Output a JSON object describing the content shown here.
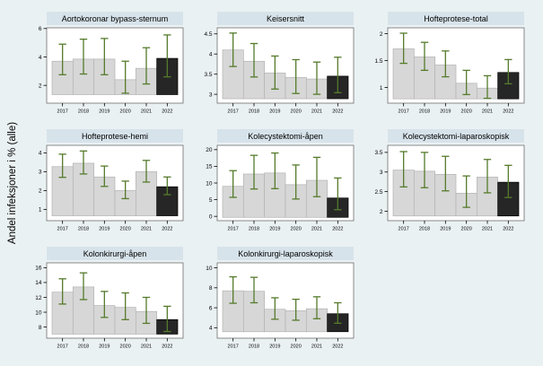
{
  "figure": {
    "ylabel": "Andel infeksjoner i % (alle)",
    "background_color": "#eaf1f3",
    "strip_color": "#d7e3ea",
    "plot_background": "#ffffff",
    "plot_border_color": "#6f6f6f",
    "bar_color": "#d7d7d7",
    "bar_border_color": "#b3b3b3",
    "highlight_bar_color": "#262626",
    "highlight_bar_border_color": "#000000",
    "ci_color": "#557b2b",
    "axis_color": "#000000"
  },
  "chart_data": {
    "type": "bar",
    "categories": [
      "2017",
      "2018",
      "2019",
      "2020",
      "2021",
      "2022"
    ],
    "ylabel": "Andel infeksjoner i % (alle)",
    "highlight_category": "2022",
    "error_bars": true,
    "legend": "none",
    "panels": [
      {
        "title": "Aortokoronar bypass-sternum",
        "yticks": [
          2,
          4,
          6
        ],
        "ylim": [
          0.75,
          6.05
        ],
        "bar_base": 1.35,
        "values": [
          3.7,
          3.85,
          3.85,
          2.4,
          3.2,
          3.9
        ],
        "ci_low": [
          2.75,
          2.8,
          2.75,
          1.45,
          2.1,
          2.6
        ],
        "ci_high": [
          4.9,
          5.25,
          5.3,
          3.7,
          4.65,
          5.55
        ]
      },
      {
        "title": "Keisersnitt",
        "yticks": [
          3,
          3.5,
          4,
          4.5
        ],
        "ylim": [
          2.78,
          4.65
        ],
        "bar_base": 2.89,
        "values": [
          4.1,
          3.82,
          3.53,
          3.42,
          3.38,
          3.45
        ],
        "ci_low": [
          3.69,
          3.43,
          3.13,
          3.02,
          3.0,
          3.04
        ],
        "ci_high": [
          4.52,
          4.26,
          3.95,
          3.86,
          3.8,
          3.92
        ]
      },
      {
        "title": "Hofteprotese-total",
        "yticks": [
          1,
          1.5,
          2
        ],
        "ylim": [
          0.71,
          2.11
        ],
        "bar_base": 0.79,
        "values": [
          1.72,
          1.57,
          1.42,
          1.08,
          0.99,
          1.28
        ],
        "ci_low": [
          1.45,
          1.32,
          1.2,
          0.87,
          0.8,
          1.07
        ],
        "ci_high": [
          2.01,
          1.84,
          1.68,
          1.32,
          1.22,
          1.52
        ]
      },
      {
        "title": "Hofteprotese-hemi",
        "yticks": [
          1,
          2,
          3,
          4
        ],
        "ylim": [
          0.4,
          4.4
        ],
        "bar_base": 0.66,
        "values": [
          3.27,
          3.45,
          2.72,
          2.0,
          3.0,
          2.2
        ],
        "ci_low": [
          2.7,
          2.88,
          2.22,
          1.57,
          2.45,
          1.78
        ],
        "ci_high": [
          3.93,
          4.1,
          3.3,
          2.5,
          3.6,
          2.72
        ]
      },
      {
        "title": "Kolecystektomi-åpen",
        "yticks": [
          0,
          5,
          10,
          15,
          20
        ],
        "ylim": [
          -1.3,
          21.3
        ],
        "bar_base": -0.3,
        "values": [
          9.0,
          12.7,
          13.0,
          9.5,
          10.8,
          5.5
        ],
        "ci_low": [
          5.7,
          8.2,
          8.3,
          5.2,
          5.9,
          2.0
        ],
        "ci_high": [
          13.7,
          18.3,
          19.0,
          15.4,
          17.7,
          11.5
        ]
      },
      {
        "title": "Kolecystektomi-laparoskopisk",
        "yticks": [
          2,
          2.5,
          3,
          3.5
        ],
        "ylim": [
          1.76,
          3.68
        ],
        "bar_base": 1.88,
        "values": [
          3.05,
          3.02,
          2.94,
          2.46,
          2.87,
          2.74
        ],
        "ci_low": [
          2.62,
          2.6,
          2.52,
          2.1,
          2.47,
          2.35
        ],
        "ci_high": [
          3.52,
          3.5,
          3.4,
          2.9,
          3.32,
          3.17
        ]
      },
      {
        "title": "Kolonkirurgi-åpen",
        "yticks": [
          8,
          10,
          12,
          14,
          16
        ],
        "ylim": [
          6.5,
          16.65
        ],
        "bar_base": 7.05,
        "values": [
          12.7,
          13.4,
          10.9,
          10.65,
          10.1,
          9.0
        ],
        "ci_low": [
          11.1,
          11.7,
          9.3,
          9.0,
          8.5,
          7.4
        ],
        "ci_high": [
          14.5,
          15.3,
          12.8,
          12.6,
          12.0,
          10.8
        ]
      },
      {
        "title": "Kolonkirurgi-laparoskopisk",
        "yticks": [
          4,
          6,
          8,
          10
        ],
        "ylim": [
          2.95,
          10.5
        ],
        "bar_base": 3.6,
        "values": [
          7.7,
          7.65,
          5.85,
          5.7,
          5.9,
          5.4
        ],
        "ci_low": [
          6.45,
          6.5,
          4.85,
          4.75,
          4.9,
          4.45
        ],
        "ci_high": [
          9.1,
          9.05,
          7.0,
          6.85,
          7.1,
          6.5
        ]
      }
    ]
  }
}
